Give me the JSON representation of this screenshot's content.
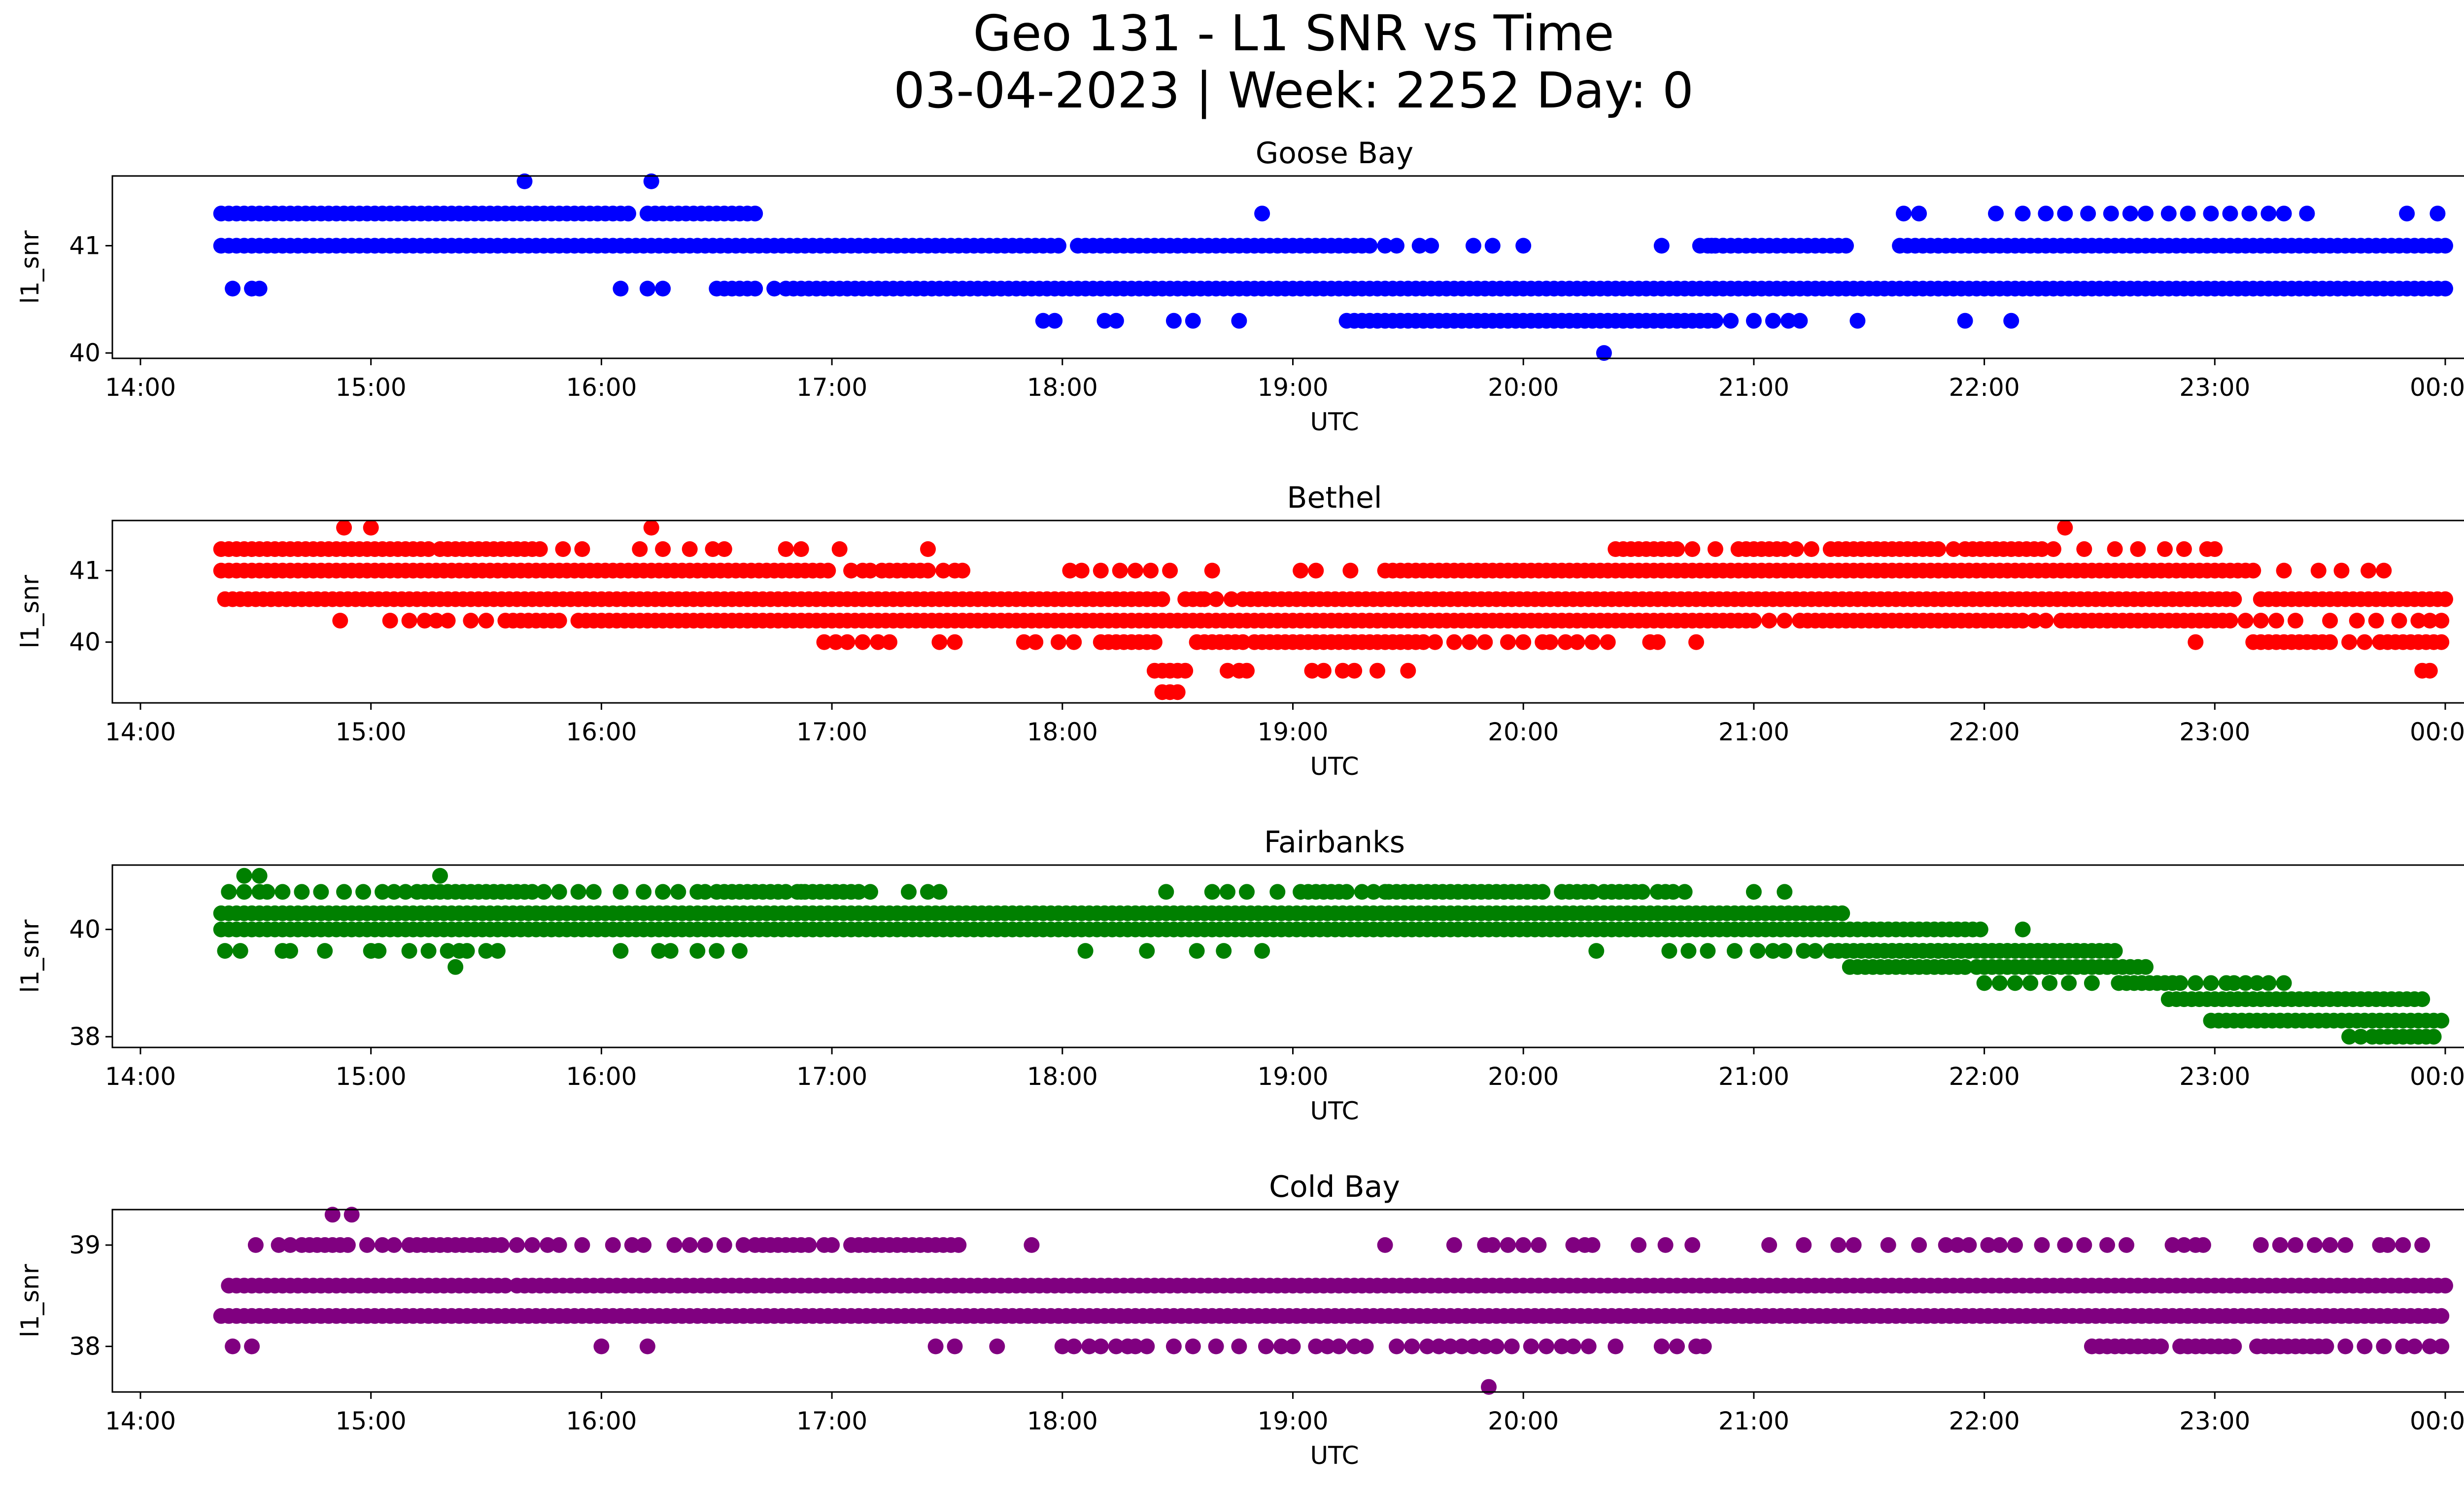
{
  "figure": {
    "title_line1": "Geo 131 - L1 SNR vs Time",
    "title_line2": "03-04-2023 | Week: 2252 Day: 0"
  },
  "chart_data": [
    {
      "type": "scatter",
      "title": "Goose Bay",
      "xlabel": "UTC",
      "ylabel": "l1_snr",
      "color": "#0000ff",
      "xlim": [
        "14:00",
        "00:00"
      ],
      "x_ticks": [
        "14:00",
        "15:00",
        "16:00",
        "17:00",
        "18:00",
        "19:00",
        "20:00",
        "21:00",
        "22:00",
        "23:00",
        "00:00"
      ],
      "y_ticks": [
        40,
        41
      ],
      "ylim": [
        39.95,
        41.65
      ],
      "y_levels": [
        {
          "value": 41.6,
          "runs": [],
          "points": [
            "15:40",
            "16:13"
          ]
        },
        {
          "value": 41.3,
          "runs": [
            [
              "14:21",
              "16:08"
            ],
            [
              "16:12",
              "16:40"
            ]
          ],
          "points": [
            "18:52",
            "21:39",
            "21:43",
            "22:03",
            "22:10",
            "22:16",
            "22:21",
            "22:27",
            "22:33",
            "22:38",
            "22:42",
            "22:48",
            "22:53",
            "22:59",
            "23:04",
            "23:09",
            "23:14",
            "23:18",
            "23:24",
            "23:50",
            "23:58"
          ]
        },
        {
          "value": 41.0,
          "runs": [
            [
              "14:21",
              "18:00"
            ],
            [
              "18:04",
              "19:20"
            ],
            [
              "20:46",
              "21:24"
            ],
            [
              "21:38",
              "00:00"
            ]
          ],
          "points": [
            "19:24",
            "19:27",
            "19:33",
            "19:36",
            "19:47",
            "19:52",
            "20:00",
            "20:36",
            "20:49",
            "20:52"
          ]
        },
        {
          "value": 40.6,
          "runs": [
            [
              "16:30",
              "16:40"
            ],
            [
              "16:48",
              "00:00"
            ]
          ],
          "points": [
            "14:24",
            "14:29",
            "14:31",
            "16:05",
            "16:12",
            "16:16",
            "16:36",
            "16:45"
          ]
        },
        {
          "value": 40.3,
          "runs": [
            [
              "19:14",
              "20:50"
            ]
          ],
          "points": [
            "17:55",
            "17:58",
            "18:11",
            "18:14",
            "18:29",
            "18:34",
            "18:46",
            "20:54",
            "21:00",
            "21:05",
            "21:09",
            "21:12",
            "21:27",
            "21:55",
            "22:07"
          ]
        },
        {
          "value": 40.0,
          "runs": [],
          "points": [
            "20:21"
          ]
        }
      ]
    },
    {
      "type": "scatter",
      "title": "Bethel",
      "xlabel": "UTC",
      "ylabel": "l1_snr",
      "color": "#ff0000",
      "xlim": [
        "14:00",
        "00:00"
      ],
      "x_ticks": [
        "14:00",
        "15:00",
        "16:00",
        "17:00",
        "18:00",
        "19:00",
        "20:00",
        "21:00",
        "22:00",
        "23:00",
        "00:00"
      ],
      "y_ticks": [
        40,
        41
      ],
      "ylim": [
        39.15,
        41.7
      ],
      "y_levels": [
        {
          "value": 41.6,
          "runs": [],
          "points": [
            "14:53",
            "15:00",
            "16:13",
            "22:21"
          ]
        },
        {
          "value": 41.3,
          "runs": [
            [
              "14:21",
              "15:15"
            ],
            [
              "15:18",
              "15:45"
            ],
            [
              "20:24",
              "20:40"
            ],
            [
              "20:56",
              "21:08"
            ],
            [
              "21:20",
              "21:48"
            ],
            [
              "21:55",
              "22:15"
            ]
          ],
          "points": [
            "15:50",
            "15:55",
            "16:10",
            "16:16",
            "16:23",
            "16:29",
            "16:32",
            "16:48",
            "16:52",
            "17:02",
            "17:25",
            "20:44",
            "20:50",
            "21:11",
            "21:15",
            "21:52",
            "22:18",
            "22:26",
            "22:34",
            "22:40",
            "22:47",
            "22:52",
            "22:58",
            "23:00"
          ]
        },
        {
          "value": 41.0,
          "runs": [
            [
              "14:21",
              "17:00"
            ],
            [
              "17:13",
              "17:25"
            ],
            [
              "19:24",
              "23:10"
            ]
          ],
          "points": [
            "17:05",
            "17:08",
            "17:10",
            "17:29",
            "17:32",
            "17:34",
            "18:02",
            "18:05",
            "18:10",
            "18:15",
            "18:19",
            "18:23",
            "18:28",
            "18:39",
            "19:02",
            "19:06",
            "19:15",
            "23:18",
            "23:27",
            "23:33",
            "23:40",
            "23:44"
          ]
        },
        {
          "value": 40.6,
          "runs": [
            [
              "14:26",
              "18:27"
            ],
            [
              "18:32",
              "18:36"
            ],
            [
              "18:47",
              "23:05"
            ],
            [
              "23:12",
              "00:00"
            ]
          ],
          "points": [
            "14:22",
            "14:24",
            "18:37",
            "18:40",
            "18:44"
          ]
        },
        {
          "value": 40.3,
          "runs": [
            [
              "15:35",
              "15:50"
            ],
            [
              "15:54",
              "21:00"
            ],
            [
              "21:12",
              "22:10"
            ],
            [
              "22:20",
              "23:05"
            ]
          ],
          "points": [
            "14:52",
            "15:05",
            "15:10",
            "15:14",
            "15:17",
            "15:20",
            "15:26",
            "15:30",
            "21:04",
            "21:08",
            "22:13",
            "22:16",
            "23:08",
            "23:12",
            "23:16",
            "23:21",
            "23:30",
            "23:37",
            "23:42",
            "23:48",
            "23:53",
            "23:56",
            "23:59"
          ]
        },
        {
          "value": 40.0,
          "runs": [
            [
              "18:50",
              "19:35"
            ],
            [
              "18:10",
              "18:25"
            ],
            [
              "18:35",
              "18:48"
            ],
            [
              "23:10",
              "23:30"
            ],
            [
              "23:43",
              "00:00"
            ]
          ],
          "points": [
            "16:58",
            "17:01",
            "17:04",
            "17:08",
            "17:12",
            "17:15",
            "17:28",
            "17:32",
            "17:50",
            "17:53",
            "17:59",
            "18:03",
            "19:37",
            "19:42",
            "19:46",
            "19:50",
            "19:56",
            "20:00",
            "20:05",
            "20:07",
            "20:11",
            "20:14",
            "20:18",
            "20:22",
            "20:33",
            "20:35",
            "20:45",
            "22:55",
            "23:35",
            "23:39"
          ]
        },
        {
          "value": 39.6,
          "runs": [
            [
              "18:24",
              "18:33"
            ]
          ],
          "points": [
            "18:43",
            "18:46",
            "18:48",
            "19:05",
            "19:08",
            "19:13",
            "19:16",
            "19:22",
            "19:30",
            "23:54",
            "23:56"
          ]
        },
        {
          "value": 39.3,
          "runs": [
            [
              "18:26",
              "18:31"
            ]
          ],
          "points": []
        }
      ]
    },
    {
      "type": "scatter",
      "title": "Fairbanks",
      "xlabel": "UTC",
      "ylabel": "l1_snr",
      "color": "#008000",
      "xlim": [
        "14:00",
        "00:00"
      ],
      "x_ticks": [
        "14:00",
        "15:00",
        "16:00",
        "17:00",
        "18:00",
        "19:00",
        "20:00",
        "21:00",
        "22:00",
        "23:00",
        "00:00"
      ],
      "y_ticks": [
        38,
        40
      ],
      "ylim": [
        37.8,
        41.2
      ],
      "y_levels": [
        {
          "value": 41.0,
          "runs": [],
          "points": [
            "14:27",
            "14:31",
            "15:18"
          ]
        },
        {
          "value": 40.7,
          "runs": [
            [
              "15:12",
              "15:42"
            ],
            [
              "16:30",
              "16:48"
            ],
            [
              "16:51",
              "17:08"
            ],
            [
              "19:02",
              "19:15"
            ],
            [
              "19:25",
              "20:05"
            ],
            [
              "20:10",
              "20:18"
            ],
            [
              "20:21",
              "20:32"
            ],
            [
              "20:35",
              "20:40"
            ]
          ],
          "points": [
            "14:23",
            "14:27",
            "14:31",
            "14:33",
            "14:37",
            "14:42",
            "14:47",
            "14:53",
            "14:58",
            "15:03",
            "15:06",
            "15:09",
            "15:45",
            "15:49",
            "15:54",
            "15:58",
            "16:05",
            "16:11",
            "16:16",
            "16:20",
            "16:25",
            "16:27",
            "16:52",
            "17:10",
            "17:20",
            "17:25",
            "17:28",
            "18:27",
            "18:39",
            "18:43",
            "18:48",
            "18:56",
            "19:18",
            "19:21",
            "19:24",
            "20:42",
            "21:00",
            "21:08"
          ]
        },
        {
          "value": 40.3,
          "runs": [
            [
              "14:21",
              "21:24"
            ]
          ],
          "points": []
        },
        {
          "value": 40.0,
          "runs": [
            [
              "14:21",
              "22:00"
            ]
          ],
          "points": [
            "22:10"
          ]
        },
        {
          "value": 39.6,
          "runs": [
            [
              "21:20",
              "22:25"
            ],
            [
              "21:30",
              "22:35"
            ]
          ],
          "points": [
            "14:22",
            "14:26",
            "14:37",
            "14:39",
            "14:48",
            "15:00",
            "15:02",
            "15:10",
            "15:15",
            "15:20",
            "15:23",
            "15:25",
            "15:30",
            "15:33",
            "16:05",
            "16:15",
            "16:18",
            "16:25",
            "16:30",
            "16:36",
            "18:06",
            "18:22",
            "18:35",
            "18:42",
            "18:52",
            "20:19",
            "20:38",
            "20:43",
            "20:48",
            "20:55",
            "21:01",
            "21:05",
            "21:08",
            "21:13",
            "21:16"
          ]
        },
        {
          "value": 39.3,
          "runs": [
            [
              "21:25",
              "21:55"
            ],
            [
              "21:58",
              "22:42"
            ]
          ],
          "points": [
            "15:22",
            "21:55"
          ]
        },
        {
          "value": 39.0,
          "runs": [
            [
              "22:35",
              "22:52"
            ]
          ],
          "points": [
            "22:00",
            "22:04",
            "22:08",
            "22:12",
            "22:17",
            "22:22",
            "22:28",
            "22:55",
            "22:59",
            "23:03",
            "23:05",
            "23:08",
            "23:11",
            "23:14",
            "23:18"
          ]
        },
        {
          "value": 38.7,
          "runs": [
            [
              "22:48",
              "23:55"
            ]
          ],
          "points": []
        },
        {
          "value": 38.3,
          "runs": [
            [
              "22:59",
              "00:00"
            ]
          ],
          "points": []
        },
        {
          "value": 38.0,
          "runs": [
            [
              "23:45",
              "23:58"
            ]
          ],
          "points": [
            "23:35",
            "23:38",
            "23:41",
            "23:43"
          ]
        }
      ]
    },
    {
      "type": "scatter",
      "title": "Cold Bay",
      "xlabel": "UTC",
      "ylabel": "l1_snr",
      "color": "#800080",
      "xlim": [
        "14:00",
        "00:00"
      ],
      "x_ticks": [
        "14:00",
        "15:00",
        "16:00",
        "17:00",
        "18:00",
        "19:00",
        "20:00",
        "21:00",
        "22:00",
        "23:00",
        "00:00"
      ],
      "y_ticks": [
        38,
        39
      ],
      "ylim": [
        37.55,
        39.35
      ],
      "y_levels": [
        {
          "value": 39.3,
          "runs": [],
          "points": [
            "14:50",
            "14:55"
          ]
        },
        {
          "value": 39.0,
          "runs": [
            [
              "14:42",
              "14:55"
            ],
            [
              "15:10",
              "15:35"
            ],
            [
              "16:40",
              "16:55"
            ],
            [
              "17:05",
              "17:27"
            ]
          ],
          "points": [
            "14:30",
            "14:36",
            "14:39",
            "14:59",
            "15:03",
            "15:06",
            "15:38",
            "15:42",
            "15:46",
            "15:49",
            "15:55",
            "16:03",
            "16:08",
            "16:11",
            "16:19",
            "16:23",
            "16:27",
            "16:32",
            "16:37",
            "16:58",
            "17:00",
            "17:29",
            "17:31",
            "17:33",
            "17:52",
            "19:24",
            "19:42",
            "19:50",
            "19:52",
            "19:56",
            "20:00",
            "20:04",
            "20:13",
            "20:16",
            "20:18",
            "20:30",
            "20:37",
            "20:44",
            "21:04",
            "21:13",
            "21:22",
            "21:26",
            "21:35",
            "21:43",
            "21:50",
            "21:53",
            "21:56",
            "22:01",
            "22:04",
            "22:08",
            "22:15",
            "22:21",
            "22:26",
            "22:32",
            "22:37",
            "22:49",
            "22:52",
            "22:55",
            "22:57",
            "23:12",
            "23:17",
            "23:21",
            "23:26",
            "23:30",
            "23:34",
            "23:43",
            "23:45",
            "23:49",
            "23:54"
          ]
        },
        {
          "value": 38.6,
          "runs": [
            [
              "14:23",
              "15:35"
            ],
            [
              "15:38",
              "00:00"
            ]
          ],
          "points": []
        },
        {
          "value": 38.3,
          "runs": [
            [
              "14:21",
              "00:00"
            ]
          ],
          "points": []
        },
        {
          "value": 38.0,
          "runs": [
            [
              "22:28",
              "22:47"
            ],
            [
              "22:51",
              "23:05"
            ],
            [
              "23:11",
              "23:30"
            ]
          ],
          "points": [
            "14:24",
            "14:29",
            "16:00",
            "16:12",
            "17:27",
            "17:32",
            "17:43",
            "18:00",
            "18:03",
            "18:07",
            "18:10",
            "18:14",
            "18:17",
            "18:19",
            "18:22",
            "18:29",
            "18:34",
            "18:40",
            "18:46",
            "18:53",
            "18:57",
            "19:00",
            "19:06",
            "19:09",
            "19:12",
            "19:16",
            "19:19",
            "19:27",
            "19:31",
            "19:35",
            "19:38",
            "19:41",
            "19:44",
            "19:47",
            "19:50",
            "19:53",
            "19:57",
            "20:02",
            "20:06",
            "20:10",
            "20:13",
            "20:17",
            "20:24",
            "20:36",
            "20:40",
            "20:45",
            "20:47",
            "23:34",
            "23:39",
            "23:44",
            "23:49",
            "23:52",
            "23:56",
            "23:59"
          ]
        },
        {
          "value": 37.6,
          "runs": [],
          "points": [
            "19:51"
          ]
        }
      ]
    }
  ]
}
